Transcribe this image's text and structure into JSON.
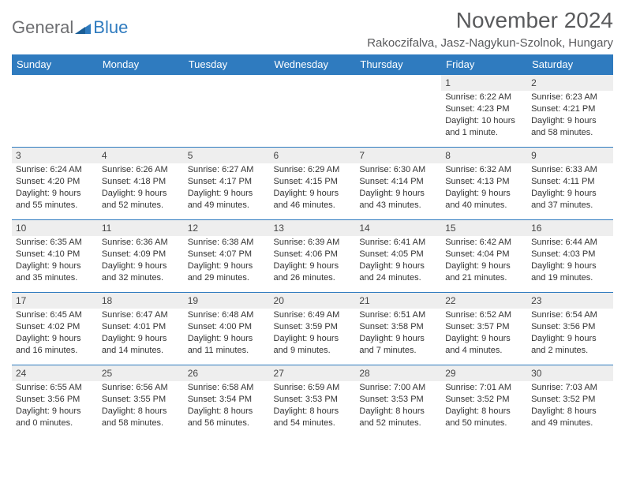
{
  "logo": {
    "general": "General",
    "blue": "Blue"
  },
  "title": "November 2024",
  "location": "Rakoczifalva, Jasz-Nagykun-Szolnok, Hungary",
  "colors": {
    "header_bg": "#2f7bbf",
    "header_text": "#ffffff",
    "daynum_bg": "#eeeeee",
    "cell_border": "#2f7bbf",
    "title_color": "#595a5c",
    "logo_general": "#6d6e71",
    "logo_blue": "#2f7bbf",
    "body_text": "#333333"
  },
  "typography": {
    "title_fontsize": 28,
    "location_fontsize": 15,
    "header_fontsize": 13,
    "daynum_fontsize": 12,
    "body_fontsize": 11
  },
  "columns": [
    "Sunday",
    "Monday",
    "Tuesday",
    "Wednesday",
    "Thursday",
    "Friday",
    "Saturday"
  ],
  "weeks": [
    [
      {
        "n": "",
        "sr": "",
        "ss": "",
        "d1": "",
        "d2": ""
      },
      {
        "n": "",
        "sr": "",
        "ss": "",
        "d1": "",
        "d2": ""
      },
      {
        "n": "",
        "sr": "",
        "ss": "",
        "d1": "",
        "d2": ""
      },
      {
        "n": "",
        "sr": "",
        "ss": "",
        "d1": "",
        "d2": ""
      },
      {
        "n": "",
        "sr": "",
        "ss": "",
        "d1": "",
        "d2": ""
      },
      {
        "n": "1",
        "sr": "Sunrise: 6:22 AM",
        "ss": "Sunset: 4:23 PM",
        "d1": "Daylight: 10 hours",
        "d2": "and 1 minute."
      },
      {
        "n": "2",
        "sr": "Sunrise: 6:23 AM",
        "ss": "Sunset: 4:21 PM",
        "d1": "Daylight: 9 hours",
        "d2": "and 58 minutes."
      }
    ],
    [
      {
        "n": "3",
        "sr": "Sunrise: 6:24 AM",
        "ss": "Sunset: 4:20 PM",
        "d1": "Daylight: 9 hours",
        "d2": "and 55 minutes."
      },
      {
        "n": "4",
        "sr": "Sunrise: 6:26 AM",
        "ss": "Sunset: 4:18 PM",
        "d1": "Daylight: 9 hours",
        "d2": "and 52 minutes."
      },
      {
        "n": "5",
        "sr": "Sunrise: 6:27 AM",
        "ss": "Sunset: 4:17 PM",
        "d1": "Daylight: 9 hours",
        "d2": "and 49 minutes."
      },
      {
        "n": "6",
        "sr": "Sunrise: 6:29 AM",
        "ss": "Sunset: 4:15 PM",
        "d1": "Daylight: 9 hours",
        "d2": "and 46 minutes."
      },
      {
        "n": "7",
        "sr": "Sunrise: 6:30 AM",
        "ss": "Sunset: 4:14 PM",
        "d1": "Daylight: 9 hours",
        "d2": "and 43 minutes."
      },
      {
        "n": "8",
        "sr": "Sunrise: 6:32 AM",
        "ss": "Sunset: 4:13 PM",
        "d1": "Daylight: 9 hours",
        "d2": "and 40 minutes."
      },
      {
        "n": "9",
        "sr": "Sunrise: 6:33 AM",
        "ss": "Sunset: 4:11 PM",
        "d1": "Daylight: 9 hours",
        "d2": "and 37 minutes."
      }
    ],
    [
      {
        "n": "10",
        "sr": "Sunrise: 6:35 AM",
        "ss": "Sunset: 4:10 PM",
        "d1": "Daylight: 9 hours",
        "d2": "and 35 minutes."
      },
      {
        "n": "11",
        "sr": "Sunrise: 6:36 AM",
        "ss": "Sunset: 4:09 PM",
        "d1": "Daylight: 9 hours",
        "d2": "and 32 minutes."
      },
      {
        "n": "12",
        "sr": "Sunrise: 6:38 AM",
        "ss": "Sunset: 4:07 PM",
        "d1": "Daylight: 9 hours",
        "d2": "and 29 minutes."
      },
      {
        "n": "13",
        "sr": "Sunrise: 6:39 AM",
        "ss": "Sunset: 4:06 PM",
        "d1": "Daylight: 9 hours",
        "d2": "and 26 minutes."
      },
      {
        "n": "14",
        "sr": "Sunrise: 6:41 AM",
        "ss": "Sunset: 4:05 PM",
        "d1": "Daylight: 9 hours",
        "d2": "and 24 minutes."
      },
      {
        "n": "15",
        "sr": "Sunrise: 6:42 AM",
        "ss": "Sunset: 4:04 PM",
        "d1": "Daylight: 9 hours",
        "d2": "and 21 minutes."
      },
      {
        "n": "16",
        "sr": "Sunrise: 6:44 AM",
        "ss": "Sunset: 4:03 PM",
        "d1": "Daylight: 9 hours",
        "d2": "and 19 minutes."
      }
    ],
    [
      {
        "n": "17",
        "sr": "Sunrise: 6:45 AM",
        "ss": "Sunset: 4:02 PM",
        "d1": "Daylight: 9 hours",
        "d2": "and 16 minutes."
      },
      {
        "n": "18",
        "sr": "Sunrise: 6:47 AM",
        "ss": "Sunset: 4:01 PM",
        "d1": "Daylight: 9 hours",
        "d2": "and 14 minutes."
      },
      {
        "n": "19",
        "sr": "Sunrise: 6:48 AM",
        "ss": "Sunset: 4:00 PM",
        "d1": "Daylight: 9 hours",
        "d2": "and 11 minutes."
      },
      {
        "n": "20",
        "sr": "Sunrise: 6:49 AM",
        "ss": "Sunset: 3:59 PM",
        "d1": "Daylight: 9 hours",
        "d2": "and 9 minutes."
      },
      {
        "n": "21",
        "sr": "Sunrise: 6:51 AM",
        "ss": "Sunset: 3:58 PM",
        "d1": "Daylight: 9 hours",
        "d2": "and 7 minutes."
      },
      {
        "n": "22",
        "sr": "Sunrise: 6:52 AM",
        "ss": "Sunset: 3:57 PM",
        "d1": "Daylight: 9 hours",
        "d2": "and 4 minutes."
      },
      {
        "n": "23",
        "sr": "Sunrise: 6:54 AM",
        "ss": "Sunset: 3:56 PM",
        "d1": "Daylight: 9 hours",
        "d2": "and 2 minutes."
      }
    ],
    [
      {
        "n": "24",
        "sr": "Sunrise: 6:55 AM",
        "ss": "Sunset: 3:56 PM",
        "d1": "Daylight: 9 hours",
        "d2": "and 0 minutes."
      },
      {
        "n": "25",
        "sr": "Sunrise: 6:56 AM",
        "ss": "Sunset: 3:55 PM",
        "d1": "Daylight: 8 hours",
        "d2": "and 58 minutes."
      },
      {
        "n": "26",
        "sr": "Sunrise: 6:58 AM",
        "ss": "Sunset: 3:54 PM",
        "d1": "Daylight: 8 hours",
        "d2": "and 56 minutes."
      },
      {
        "n": "27",
        "sr": "Sunrise: 6:59 AM",
        "ss": "Sunset: 3:53 PM",
        "d1": "Daylight: 8 hours",
        "d2": "and 54 minutes."
      },
      {
        "n": "28",
        "sr": "Sunrise: 7:00 AM",
        "ss": "Sunset: 3:53 PM",
        "d1": "Daylight: 8 hours",
        "d2": "and 52 minutes."
      },
      {
        "n": "29",
        "sr": "Sunrise: 7:01 AM",
        "ss": "Sunset: 3:52 PM",
        "d1": "Daylight: 8 hours",
        "d2": "and 50 minutes."
      },
      {
        "n": "30",
        "sr": "Sunrise: 7:03 AM",
        "ss": "Sunset: 3:52 PM",
        "d1": "Daylight: 8 hours",
        "d2": "and 49 minutes."
      }
    ]
  ]
}
